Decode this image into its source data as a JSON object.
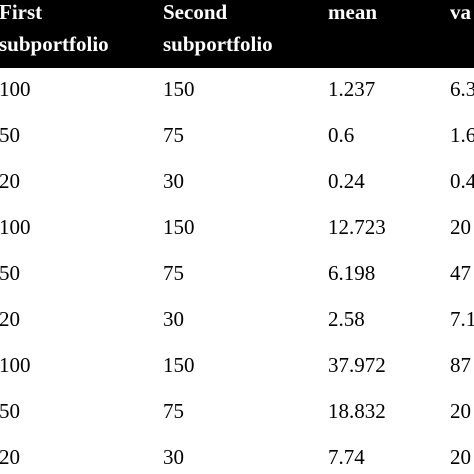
{
  "table": {
    "header": [
      [
        "First",
        "subportfolio"
      ],
      [
        "Second",
        "subportfolio"
      ],
      [
        "mean"
      ],
      [
        "va"
      ]
    ],
    "rows": [
      [
        "100",
        "150",
        "1.237",
        "6.3"
      ],
      [
        "50",
        "75",
        "0.6",
        "1.6"
      ],
      [
        "20",
        "30",
        "0.24",
        "0.4"
      ],
      [
        "100",
        "150",
        "12.723",
        "20"
      ],
      [
        "50",
        "75",
        "6.198",
        "47"
      ],
      [
        "20",
        "30",
        "2.58",
        "7.1"
      ],
      [
        "100",
        "150",
        "37.972",
        "87"
      ],
      [
        "50",
        "75",
        "18.832",
        "20"
      ],
      [
        "20",
        "30",
        "7.74",
        "20"
      ]
    ]
  }
}
